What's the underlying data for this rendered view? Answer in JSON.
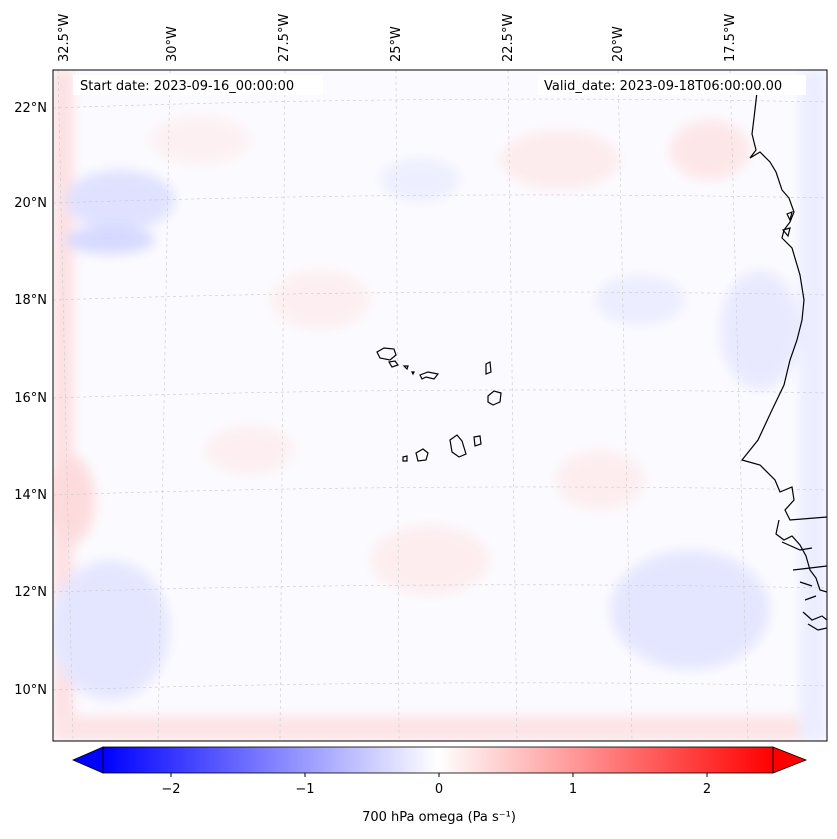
{
  "map": {
    "start_date": "Start date: 2023-09-16_00:00:00",
    "valid_date": "Valid_date: 2023-09-18T06:00:00.00",
    "lon_labels": [
      "32.5°W",
      "30°W",
      "27.5°W",
      "25°W",
      "22.5°W",
      "20°W",
      "17.5°W"
    ],
    "lat_labels": [
      "22°N",
      "20°N",
      "18°N",
      "16°N",
      "14°N",
      "12°N",
      "10°N"
    ]
  },
  "colorbar": {
    "label": "700 hPa omega (Pa s⁻¹)",
    "ticks": [
      "−2",
      "−1",
      "0",
      "1",
      "2"
    ],
    "range": [
      -2.5,
      2.5
    ],
    "colors": {
      "negative": "#0000ff",
      "zero": "#ffffff",
      "positive": "#ff0000"
    }
  },
  "islands": [
    "Santo Antão",
    "São Vicente",
    "Santa Luzia",
    "São Nicolau",
    "Sal",
    "Boa Vista",
    "Maio",
    "Santiago",
    "Fogo",
    "Brava"
  ]
}
